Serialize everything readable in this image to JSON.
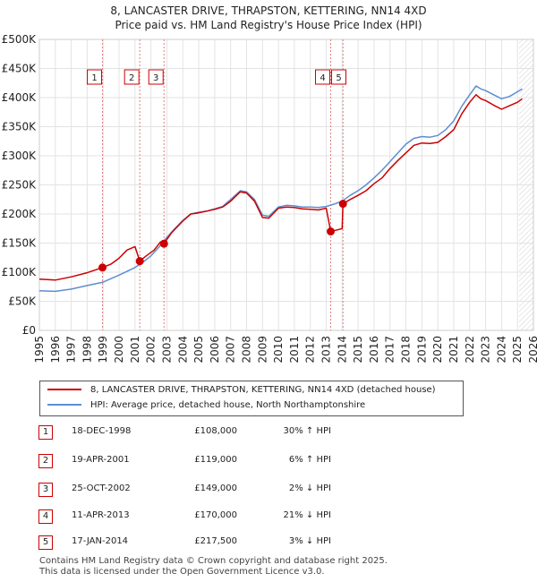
{
  "title_line1": "8, LANCASTER DRIVE, THRAPSTON, KETTERING, NN14 4XD",
  "title_line2": "Price paid vs. HM Land Registry's House Price Index (HPI)",
  "chart_data": {
    "type": "line",
    "title": "8, LANCASTER DRIVE, THRAPSTON, KETTERING, NN14 4XD — Price paid vs. HM Land Registry's House Price Index (HPI)",
    "xlabel": "",
    "ylabel": "",
    "xlim": [
      1995,
      2026
    ],
    "ylim": [
      0,
      500000
    ],
    "x_ticks": [
      1995,
      1996,
      1997,
      1998,
      1999,
      2000,
      2001,
      2002,
      2003,
      2004,
      2005,
      2006,
      2007,
      2008,
      2009,
      2010,
      2011,
      2012,
      2013,
      2014,
      2015,
      2016,
      2017,
      2018,
      2019,
      2020,
      2021,
      2022,
      2023,
      2024,
      2025,
      2026
    ],
    "y_ticks": [
      0,
      50000,
      100000,
      150000,
      200000,
      250000,
      300000,
      350000,
      400000,
      450000,
      500000
    ],
    "y_tick_labels": [
      "£0",
      "£50K",
      "£100K",
      "£150K",
      "£200K",
      "£250K",
      "£300K",
      "£350K",
      "£400K",
      "£450K",
      "£500K"
    ],
    "grid": true,
    "future_hatch_from": 2025.1,
    "series": [
      {
        "name": "8, LANCASTER DRIVE, THRAPSTON, KETTERING, NN14 4XD (detached house)",
        "color": "#cc0000",
        "points": [
          [
            1995.0,
            88000
          ],
          [
            1996.0,
            86500
          ],
          [
            1997.0,
            92000
          ],
          [
            1998.0,
            99000
          ],
          [
            1998.96,
            108000
          ],
          [
            1999.5,
            114000
          ],
          [
            2000.0,
            124000
          ],
          [
            2000.5,
            138000
          ],
          [
            2001.0,
            144000
          ],
          [
            2001.3,
            119000
          ],
          [
            2001.7,
            128000
          ],
          [
            2002.2,
            138000
          ],
          [
            2002.6,
            152000
          ],
          [
            2002.82,
            149000
          ],
          [
            2003.3,
            168000
          ],
          [
            2004.0,
            188000
          ],
          [
            2004.5,
            200000
          ],
          [
            2005.0,
            202000
          ],
          [
            2005.5,
            205000
          ],
          [
            2006.0,
            208000
          ],
          [
            2006.5,
            212000
          ],
          [
            2007.0,
            222000
          ],
          [
            2007.6,
            238000
          ],
          [
            2008.0,
            236000
          ],
          [
            2008.5,
            222000
          ],
          [
            2009.0,
            194000
          ],
          [
            2009.4,
            193000
          ],
          [
            2010.0,
            210000
          ],
          [
            2010.5,
            212000
          ],
          [
            2011.0,
            211000
          ],
          [
            2011.5,
            209000
          ],
          [
            2012.0,
            208000
          ],
          [
            2012.5,
            207000
          ],
          [
            2013.0,
            210000
          ],
          [
            2013.28,
            170000
          ],
          [
            2013.6,
            172000
          ],
          [
            2014.0,
            175000
          ],
          [
            2014.05,
            217500
          ],
          [
            2014.5,
            225000
          ],
          [
            2015.0,
            232000
          ],
          [
            2015.5,
            240000
          ],
          [
            2016.0,
            252000
          ],
          [
            2016.5,
            262000
          ],
          [
            2017.0,
            278000
          ],
          [
            2017.5,
            292000
          ],
          [
            2018.0,
            305000
          ],
          [
            2018.5,
            318000
          ],
          [
            2019.0,
            322000
          ],
          [
            2019.5,
            321000
          ],
          [
            2020.0,
            323000
          ],
          [
            2020.5,
            333000
          ],
          [
            2021.0,
            345000
          ],
          [
            2021.5,
            372000
          ],
          [
            2022.0,
            392000
          ],
          [
            2022.4,
            405000
          ],
          [
            2022.7,
            398000
          ],
          [
            2023.0,
            395000
          ],
          [
            2023.5,
            387000
          ],
          [
            2024.0,
            380000
          ],
          [
            2024.5,
            386000
          ],
          [
            2025.0,
            392000
          ],
          [
            2025.3,
            398000
          ]
        ]
      },
      {
        "name": "HPI: Average price, detached house, North Northamptonshire",
        "color": "#5b8fd0",
        "points": [
          [
            1995.0,
            68000
          ],
          [
            1996.0,
            67000
          ],
          [
            1997.0,
            71000
          ],
          [
            1998.0,
            77000
          ],
          [
            1999.0,
            83000
          ],
          [
            2000.0,
            95000
          ],
          [
            2001.0,
            108000
          ],
          [
            2001.5,
            117000
          ],
          [
            2002.0,
            128000
          ],
          [
            2002.5,
            143000
          ],
          [
            2003.0,
            160000
          ],
          [
            2003.5,
            175000
          ],
          [
            2004.0,
            189000
          ],
          [
            2004.5,
            200000
          ],
          [
            2005.0,
            203000
          ],
          [
            2005.5,
            205000
          ],
          [
            2006.0,
            209000
          ],
          [
            2006.5,
            213000
          ],
          [
            2007.0,
            225000
          ],
          [
            2007.6,
            240000
          ],
          [
            2008.0,
            238000
          ],
          [
            2008.5,
            225000
          ],
          [
            2009.0,
            198000
          ],
          [
            2009.4,
            196000
          ],
          [
            2010.0,
            212000
          ],
          [
            2010.5,
            215000
          ],
          [
            2011.0,
            214000
          ],
          [
            2011.5,
            212000
          ],
          [
            2012.0,
            212000
          ],
          [
            2012.5,
            211000
          ],
          [
            2013.0,
            213000
          ],
          [
            2013.5,
            217000
          ],
          [
            2014.0,
            222000
          ],
          [
            2014.5,
            232000
          ],
          [
            2015.0,
            240000
          ],
          [
            2015.5,
            250000
          ],
          [
            2016.0,
            262000
          ],
          [
            2016.5,
            275000
          ],
          [
            2017.0,
            290000
          ],
          [
            2017.5,
            305000
          ],
          [
            2018.0,
            320000
          ],
          [
            2018.5,
            330000
          ],
          [
            2019.0,
            333000
          ],
          [
            2019.5,
            332000
          ],
          [
            2020.0,
            335000
          ],
          [
            2020.5,
            345000
          ],
          [
            2021.0,
            360000
          ],
          [
            2021.5,
            385000
          ],
          [
            2022.0,
            405000
          ],
          [
            2022.4,
            420000
          ],
          [
            2022.7,
            415000
          ],
          [
            2023.0,
            412000
          ],
          [
            2023.5,
            405000
          ],
          [
            2024.0,
            398000
          ],
          [
            2024.5,
            402000
          ],
          [
            2025.0,
            410000
          ],
          [
            2025.3,
            415000
          ]
        ]
      }
    ],
    "markers": [
      {
        "label": "1",
        "x": 1998.96,
        "y": 108000
      },
      {
        "label": "2",
        "x": 2001.3,
        "y": 119000
      },
      {
        "label": "3",
        "x": 2002.82,
        "y": 149000
      },
      {
        "label": "4",
        "x": 2013.28,
        "y": 170000
      },
      {
        "label": "5",
        "x": 2014.05,
        "y": 217500
      }
    ]
  },
  "legend": {
    "property_label": "8, LANCASTER DRIVE, THRAPSTON, KETTERING, NN14 4XD (detached house)",
    "hpi_label": "HPI: Average price, detached house, North Northamptonshire",
    "property_color": "#cc0000",
    "hpi_color": "#5b8fd0"
  },
  "transactions": [
    {
      "num": "1",
      "date": "18-DEC-1998",
      "price": "£108,000",
      "hpi": "30% ↑ HPI"
    },
    {
      "num": "2",
      "date": "19-APR-2001",
      "price": "£119,000",
      "hpi": "6% ↑ HPI"
    },
    {
      "num": "3",
      "date": "25-OCT-2002",
      "price": "£149,000",
      "hpi": "2% ↓ HPI"
    },
    {
      "num": "4",
      "date": "11-APR-2013",
      "price": "£170,000",
      "hpi": "21% ↓ HPI"
    },
    {
      "num": "5",
      "date": "17-JAN-2014",
      "price": "£217,500",
      "hpi": "3% ↓ HPI"
    }
  ],
  "footer_line1": "Contains HM Land Registry data © Crown copyright and database right 2025.",
  "footer_line2": "This data is licensed under the Open Government Licence v3.0."
}
